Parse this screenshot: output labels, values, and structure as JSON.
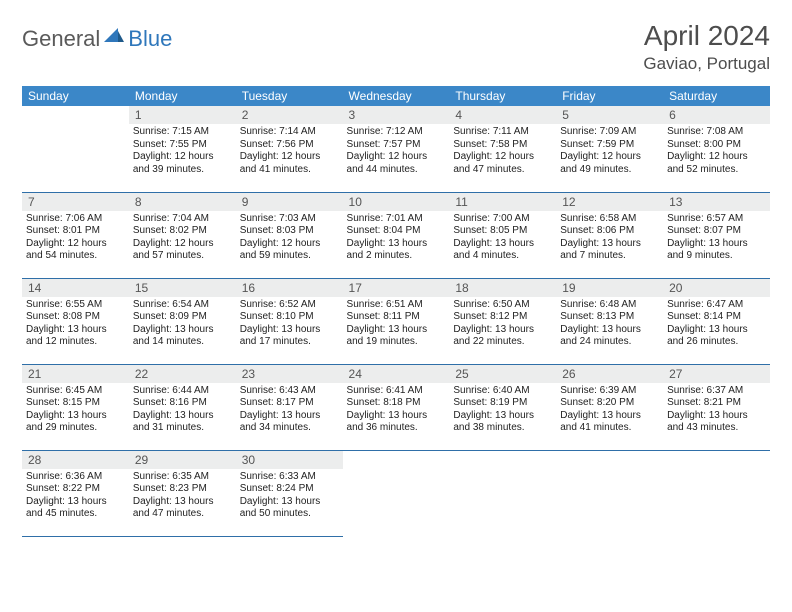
{
  "logo": {
    "part1": "General",
    "part2": "Blue"
  },
  "title": {
    "month": "April 2024",
    "location": "Gaviao, Portugal"
  },
  "colors": {
    "header_bg": "#3b87c8",
    "header_text": "#ffffff",
    "daynum_bg": "#eceded",
    "daynum_text": "#555555",
    "border": "#2f6fa8",
    "logo_gray": "#5a5a5a",
    "logo_blue": "#2f77bb",
    "title_text": "#4d4d4d",
    "body_text": "#222222"
  },
  "typography": {
    "title_month_fontsize": 28,
    "title_loc_fontsize": 17,
    "dayheader_fontsize": 12,
    "daynum_fontsize": 12,
    "cell_fontsize": 10
  },
  "day_names": [
    "Sunday",
    "Monday",
    "Tuesday",
    "Wednesday",
    "Thursday",
    "Friday",
    "Saturday"
  ],
  "weeks": [
    [
      null,
      {
        "num": "1",
        "sunrise": "Sunrise: 7:15 AM",
        "sunset": "Sunset: 7:55 PM",
        "daylight": "Daylight: 12 hours and 39 minutes."
      },
      {
        "num": "2",
        "sunrise": "Sunrise: 7:14 AM",
        "sunset": "Sunset: 7:56 PM",
        "daylight": "Daylight: 12 hours and 41 minutes."
      },
      {
        "num": "3",
        "sunrise": "Sunrise: 7:12 AM",
        "sunset": "Sunset: 7:57 PM",
        "daylight": "Daylight: 12 hours and 44 minutes."
      },
      {
        "num": "4",
        "sunrise": "Sunrise: 7:11 AM",
        "sunset": "Sunset: 7:58 PM",
        "daylight": "Daylight: 12 hours and 47 minutes."
      },
      {
        "num": "5",
        "sunrise": "Sunrise: 7:09 AM",
        "sunset": "Sunset: 7:59 PM",
        "daylight": "Daylight: 12 hours and 49 minutes."
      },
      {
        "num": "6",
        "sunrise": "Sunrise: 7:08 AM",
        "sunset": "Sunset: 8:00 PM",
        "daylight": "Daylight: 12 hours and 52 minutes."
      }
    ],
    [
      {
        "num": "7",
        "sunrise": "Sunrise: 7:06 AM",
        "sunset": "Sunset: 8:01 PM",
        "daylight": "Daylight: 12 hours and 54 minutes."
      },
      {
        "num": "8",
        "sunrise": "Sunrise: 7:04 AM",
        "sunset": "Sunset: 8:02 PM",
        "daylight": "Daylight: 12 hours and 57 minutes."
      },
      {
        "num": "9",
        "sunrise": "Sunrise: 7:03 AM",
        "sunset": "Sunset: 8:03 PM",
        "daylight": "Daylight: 12 hours and 59 minutes."
      },
      {
        "num": "10",
        "sunrise": "Sunrise: 7:01 AM",
        "sunset": "Sunset: 8:04 PM",
        "daylight": "Daylight: 13 hours and 2 minutes."
      },
      {
        "num": "11",
        "sunrise": "Sunrise: 7:00 AM",
        "sunset": "Sunset: 8:05 PM",
        "daylight": "Daylight: 13 hours and 4 minutes."
      },
      {
        "num": "12",
        "sunrise": "Sunrise: 6:58 AM",
        "sunset": "Sunset: 8:06 PM",
        "daylight": "Daylight: 13 hours and 7 minutes."
      },
      {
        "num": "13",
        "sunrise": "Sunrise: 6:57 AM",
        "sunset": "Sunset: 8:07 PM",
        "daylight": "Daylight: 13 hours and 9 minutes."
      }
    ],
    [
      {
        "num": "14",
        "sunrise": "Sunrise: 6:55 AM",
        "sunset": "Sunset: 8:08 PM",
        "daylight": "Daylight: 13 hours and 12 minutes."
      },
      {
        "num": "15",
        "sunrise": "Sunrise: 6:54 AM",
        "sunset": "Sunset: 8:09 PM",
        "daylight": "Daylight: 13 hours and 14 minutes."
      },
      {
        "num": "16",
        "sunrise": "Sunrise: 6:52 AM",
        "sunset": "Sunset: 8:10 PM",
        "daylight": "Daylight: 13 hours and 17 minutes."
      },
      {
        "num": "17",
        "sunrise": "Sunrise: 6:51 AM",
        "sunset": "Sunset: 8:11 PM",
        "daylight": "Daylight: 13 hours and 19 minutes."
      },
      {
        "num": "18",
        "sunrise": "Sunrise: 6:50 AM",
        "sunset": "Sunset: 8:12 PM",
        "daylight": "Daylight: 13 hours and 22 minutes."
      },
      {
        "num": "19",
        "sunrise": "Sunrise: 6:48 AM",
        "sunset": "Sunset: 8:13 PM",
        "daylight": "Daylight: 13 hours and 24 minutes."
      },
      {
        "num": "20",
        "sunrise": "Sunrise: 6:47 AM",
        "sunset": "Sunset: 8:14 PM",
        "daylight": "Daylight: 13 hours and 26 minutes."
      }
    ],
    [
      {
        "num": "21",
        "sunrise": "Sunrise: 6:45 AM",
        "sunset": "Sunset: 8:15 PM",
        "daylight": "Daylight: 13 hours and 29 minutes."
      },
      {
        "num": "22",
        "sunrise": "Sunrise: 6:44 AM",
        "sunset": "Sunset: 8:16 PM",
        "daylight": "Daylight: 13 hours and 31 minutes."
      },
      {
        "num": "23",
        "sunrise": "Sunrise: 6:43 AM",
        "sunset": "Sunset: 8:17 PM",
        "daylight": "Daylight: 13 hours and 34 minutes."
      },
      {
        "num": "24",
        "sunrise": "Sunrise: 6:41 AM",
        "sunset": "Sunset: 8:18 PM",
        "daylight": "Daylight: 13 hours and 36 minutes."
      },
      {
        "num": "25",
        "sunrise": "Sunrise: 6:40 AM",
        "sunset": "Sunset: 8:19 PM",
        "daylight": "Daylight: 13 hours and 38 minutes."
      },
      {
        "num": "26",
        "sunrise": "Sunrise: 6:39 AM",
        "sunset": "Sunset: 8:20 PM",
        "daylight": "Daylight: 13 hours and 41 minutes."
      },
      {
        "num": "27",
        "sunrise": "Sunrise: 6:37 AM",
        "sunset": "Sunset: 8:21 PM",
        "daylight": "Daylight: 13 hours and 43 minutes."
      }
    ],
    [
      {
        "num": "28",
        "sunrise": "Sunrise: 6:36 AM",
        "sunset": "Sunset: 8:22 PM",
        "daylight": "Daylight: 13 hours and 45 minutes."
      },
      {
        "num": "29",
        "sunrise": "Sunrise: 6:35 AM",
        "sunset": "Sunset: 8:23 PM",
        "daylight": "Daylight: 13 hours and 47 minutes."
      },
      {
        "num": "30",
        "sunrise": "Sunrise: 6:33 AM",
        "sunset": "Sunset: 8:24 PM",
        "daylight": "Daylight: 13 hours and 50 minutes."
      },
      null,
      null,
      null,
      null
    ]
  ]
}
